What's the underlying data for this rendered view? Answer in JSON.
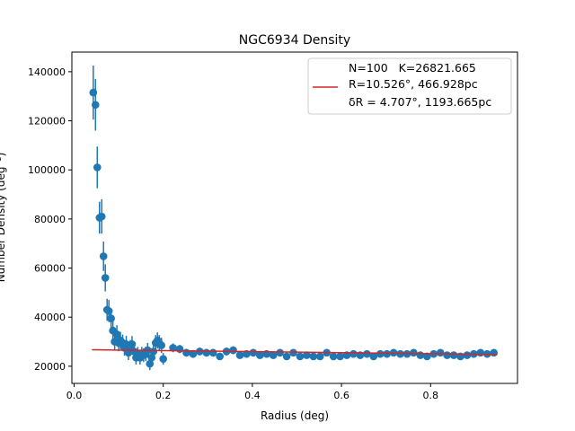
{
  "chart_data": {
    "type": "scatter",
    "title": "NGC6934 Density",
    "xlabel": "Radius (deg)",
    "ylabel": "Number Density (deg⁻²)",
    "xlim": [
      -0.005,
      0.995
    ],
    "ylim": [
      13000,
      148000
    ],
    "xticks": [
      0.0,
      0.2,
      0.4,
      0.6,
      0.8
    ],
    "xtick_labels": [
      "0.0",
      "0.2",
      "0.4",
      "0.6",
      "0.8"
    ],
    "yticks": [
      20000,
      40000,
      60000,
      80000,
      100000,
      120000,
      140000
    ],
    "ytick_labels": [
      "20000",
      "40000",
      "60000",
      "80000",
      "100000",
      "120000",
      "140000"
    ],
    "grid": false,
    "legend": {
      "placement": "top-right",
      "line1": "N=100   K=26821.665",
      "line2": "R=10.526°, 466.928pc",
      "line3": "δR = 4.707°, 1193.665pc"
    },
    "colors": {
      "points": "#1f77b4",
      "fit": "#d62728"
    },
    "fit_line": {
      "x": [
        0.04,
        0.95
      ],
      "y": [
        26700,
        24800
      ]
    },
    "x": [
      0.043,
      0.048,
      0.052,
      0.057,
      0.062,
      0.066,
      0.07,
      0.074,
      0.078,
      0.083,
      0.087,
      0.091,
      0.096,
      0.1,
      0.104,
      0.109,
      0.113,
      0.117,
      0.122,
      0.126,
      0.13,
      0.135,
      0.139,
      0.143,
      0.148,
      0.152,
      0.156,
      0.161,
      0.165,
      0.17,
      0.174,
      0.178,
      0.183,
      0.187,
      0.191,
      0.196,
      0.2,
      0.222,
      0.237,
      0.252,
      0.267,
      0.282,
      0.297,
      0.312,
      0.327,
      0.342,
      0.357,
      0.372,
      0.387,
      0.402,
      0.417,
      0.432,
      0.447,
      0.462,
      0.477,
      0.492,
      0.507,
      0.522,
      0.537,
      0.552,
      0.567,
      0.582,
      0.597,
      0.612,
      0.627,
      0.642,
      0.657,
      0.672,
      0.687,
      0.702,
      0.717,
      0.732,
      0.747,
      0.762,
      0.777,
      0.792,
      0.807,
      0.822,
      0.837,
      0.852,
      0.867,
      0.882,
      0.897,
      0.912,
      0.927,
      0.942
    ],
    "y": [
      131500,
      126500,
      101000,
      80500,
      81000,
      64800,
      56000,
      43000,
      42500,
      39500,
      34500,
      30000,
      33000,
      29500,
      30500,
      29500,
      27500,
      29000,
      25500,
      27500,
      29000,
      26000,
      23500,
      25000,
      23500,
      25000,
      24500,
      25000,
      26500,
      21000,
      23500,
      26000,
      29500,
      30500,
      29500,
      28500,
      23000,
      27500,
      27000,
      25500,
      25000,
      26000,
      25500,
      25500,
      24000,
      26000,
      26500,
      24500,
      25000,
      25500,
      24500,
      25000,
      24500,
      25500,
      24000,
      25500,
      24000,
      24500,
      24000,
      24000,
      25500,
      24000,
      24000,
      24500,
      25000,
      24500,
      25000,
      24000,
      25000,
      25000,
      25500,
      25000,
      25000,
      25500,
      24500,
      24000,
      25000,
      25500,
      24500,
      24500,
      24000,
      24500,
      25000,
      25500,
      25000,
      25500
    ],
    "yerr": [
      11000,
      10500,
      8500,
      6500,
      7000,
      6000,
      5500,
      4500,
      4500,
      4000,
      3800,
      3600,
      3700,
      3400,
      3500,
      3400,
      3200,
      3400,
      3000,
      3200,
      3300,
      3000,
      2800,
      2900,
      2800,
      2900,
      2800,
      2900,
      3000,
      2600,
      2800,
      3000,
      3200,
      3300,
      3200,
      3100,
      2400,
      1800,
      1700,
      1600,
      1600,
      1600,
      1600,
      1600,
      1500,
      1600,
      1600,
      1500,
      1500,
      1600,
      1500,
      1500,
      1500,
      1500,
      1500,
      1500,
      1500,
      1500,
      1500,
      1500,
      1500,
      1500,
      1500,
      1500,
      1500,
      1500,
      1500,
      1500,
      1500,
      1500,
      1500,
      1500,
      1500,
      1500,
      1500,
      1500,
      1500,
      1500,
      1500,
      1500,
      1500,
      1500,
      1500,
      1500,
      1500,
      1500
    ]
  }
}
